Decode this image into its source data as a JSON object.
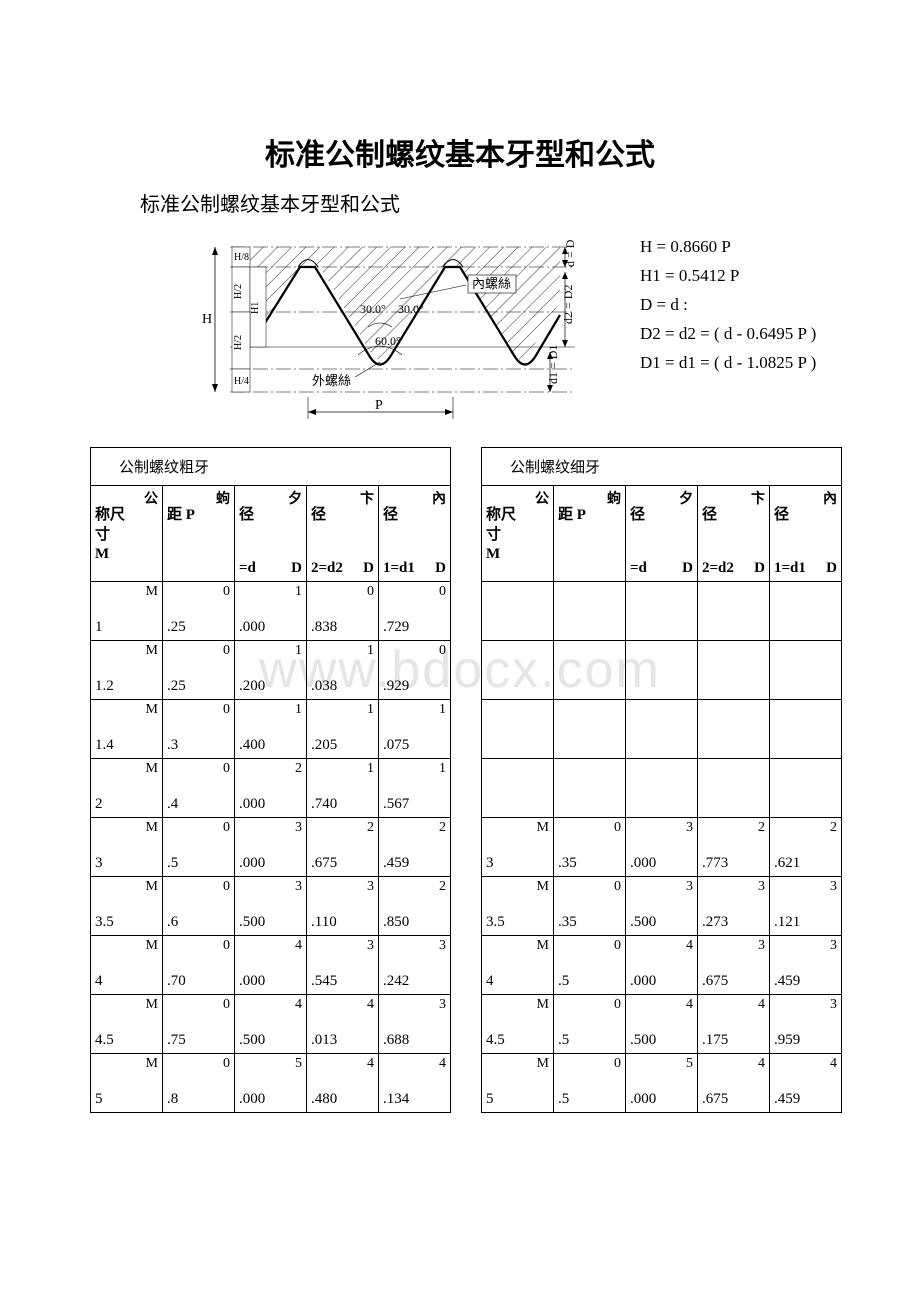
{
  "title": "标准公制螺纹基本牙型和公式",
  "subtitle": "标准公制螺纹基本牙型和公式",
  "watermark": "www.bdocx.com",
  "diagram": {
    "labels": {
      "H": "H",
      "H8": "H/8",
      "H2": "H/2",
      "H1": "H1",
      "H4": "H/4",
      "angle30a": "30.0°",
      "angle30b": "30.0°",
      "angle60": "60.0°",
      "inner": "內螺絲",
      "outer": "外螺絲",
      "P": "P",
      "d_D": "d = D",
      "d2_D2": "d2 = D2",
      "d1_D1": "d1 = D1"
    },
    "stroke": "#000000",
    "hatch": "#000000"
  },
  "formulas": [
    "H = 0.8660 P",
    "H1 = 0.5412 P",
    "D = d :",
    "D2 = d2 = ( d - 0.6495 P )",
    "D1 = d1 = ( d - 1.0825 P )"
  ],
  "headers": [
    {
      "top": "公",
      "mid": "称尺<br>寸<br>M",
      "bot": ""
    },
    {
      "top": "蚼",
      "mid": "距 P",
      "bot": ""
    },
    {
      "top": "夕",
      "mid": "径",
      "botR": "D",
      "botL": "=d"
    },
    {
      "top": "卞",
      "mid": "径",
      "botR": "D",
      "botL": "2=d2"
    },
    {
      "top": "內",
      "mid": "径",
      "botR": "D",
      "botL": "1=d1"
    }
  ],
  "coarse": {
    "title": "公制螺纹粗牙",
    "rows": [
      [
        {
          "tr": "M",
          "bl": "1"
        },
        {
          "tr": "0",
          "bl": ".25"
        },
        {
          "tr": "1",
          "bl": ".000"
        },
        {
          "tr": "0",
          "bl": ".838"
        },
        {
          "tr": "0",
          "bl": ".729"
        }
      ],
      [
        {
          "tr": "M",
          "bl": "1.2"
        },
        {
          "tr": "0",
          "bl": ".25"
        },
        {
          "tr": "1",
          "bl": ".200"
        },
        {
          "tr": "1",
          "bl": ".038"
        },
        {
          "tr": "0",
          "bl": ".929"
        }
      ],
      [
        {
          "tr": "M",
          "bl": "1.4"
        },
        {
          "tr": "0",
          "bl": ".3"
        },
        {
          "tr": "1",
          "bl": ".400"
        },
        {
          "tr": "1",
          "bl": ".205"
        },
        {
          "tr": "1",
          "bl": ".075"
        }
      ],
      [
        {
          "tr": "M",
          "bl": "2"
        },
        {
          "tr": "0",
          "bl": ".4"
        },
        {
          "tr": "2",
          "bl": ".000"
        },
        {
          "tr": "1",
          "bl": ".740"
        },
        {
          "tr": "1",
          "bl": ".567"
        }
      ],
      [
        {
          "tr": "M",
          "bl": "3"
        },
        {
          "tr": "0",
          "bl": ".5"
        },
        {
          "tr": "3",
          "bl": ".000"
        },
        {
          "tr": "2",
          "bl": ".675"
        },
        {
          "tr": "2",
          "bl": ".459"
        }
      ],
      [
        {
          "tr": "M",
          "bl": "3.5"
        },
        {
          "tr": "0",
          "bl": ".6"
        },
        {
          "tr": "3",
          "bl": ".500"
        },
        {
          "tr": "3",
          "bl": ".110"
        },
        {
          "tr": "2",
          "bl": ".850"
        }
      ],
      [
        {
          "tr": "M",
          "bl": "4"
        },
        {
          "tr": "0",
          "bl": ".70"
        },
        {
          "tr": "4",
          "bl": ".000"
        },
        {
          "tr": "3",
          "bl": ".545"
        },
        {
          "tr": "3",
          "bl": ".242"
        }
      ],
      [
        {
          "tr": "M",
          "bl": "4.5"
        },
        {
          "tr": "0",
          "bl": ".75"
        },
        {
          "tr": "4",
          "bl": ".500"
        },
        {
          "tr": "4",
          "bl": ".013"
        },
        {
          "tr": "3",
          "bl": ".688"
        }
      ],
      [
        {
          "tr": "M",
          "bl": "5"
        },
        {
          "tr": "0",
          "bl": ".8"
        },
        {
          "tr": "5",
          "bl": ".000"
        },
        {
          "tr": "4",
          "bl": ".480"
        },
        {
          "tr": "4",
          "bl": ".134"
        }
      ]
    ]
  },
  "fine": {
    "title": "公制螺纹细牙",
    "rows": [
      [
        null,
        null,
        null,
        null,
        null
      ],
      [
        null,
        null,
        null,
        null,
        null
      ],
      [
        null,
        null,
        null,
        null,
        null
      ],
      [
        null,
        null,
        null,
        null,
        null
      ],
      [
        {
          "tr": "M",
          "bl": "3"
        },
        {
          "tr": "0",
          "bl": ".35"
        },
        {
          "tr": "3",
          "bl": ".000"
        },
        {
          "tr": "2",
          "bl": ".773"
        },
        {
          "tr": "2",
          "bl": ".621"
        }
      ],
      [
        {
          "tr": "M",
          "bl": "3.5"
        },
        {
          "tr": "0",
          "bl": ".35"
        },
        {
          "tr": "3",
          "bl": ".500"
        },
        {
          "tr": "3",
          "bl": ".273"
        },
        {
          "tr": "3",
          "bl": ".121"
        }
      ],
      [
        {
          "tr": "M",
          "bl": "4"
        },
        {
          "tr": "0",
          "bl": ".5"
        },
        {
          "tr": "4",
          "bl": ".000"
        },
        {
          "tr": "3",
          "bl": ".675"
        },
        {
          "tr": "3",
          "bl": ".459"
        }
      ],
      [
        {
          "tr": "M",
          "bl": "4.5"
        },
        {
          "tr": "0",
          "bl": ".5"
        },
        {
          "tr": "4",
          "bl": ".500"
        },
        {
          "tr": "4",
          "bl": ".175"
        },
        {
          "tr": "3",
          "bl": ".959"
        }
      ],
      [
        {
          "tr": "M",
          "bl": "5"
        },
        {
          "tr": "0",
          "bl": ".5"
        },
        {
          "tr": "5",
          "bl": ".000"
        },
        {
          "tr": "4",
          "bl": ".675"
        },
        {
          "tr": "4",
          "bl": ".459"
        }
      ]
    ]
  }
}
